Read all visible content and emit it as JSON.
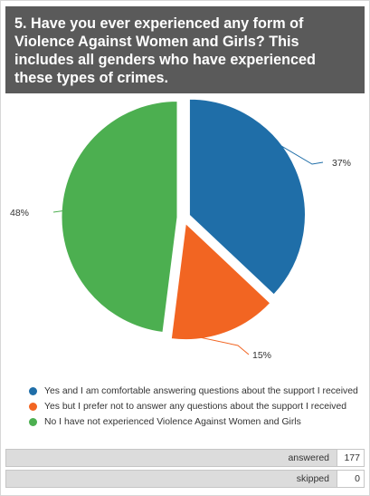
{
  "question": {
    "title": "5. Have you ever experienced any form of Violence Against Women and Girls? This includes all genders who have experienced these types of crimes."
  },
  "chart_data": {
    "type": "pie",
    "categories": [
      "Yes and I am comfortable answering questions about the support I received",
      "Yes but I prefer not to answer any questions about the support I received",
      "No I have not experienced Violence Against Women and Girls"
    ],
    "values": [
      37,
      15,
      48
    ],
    "value_labels": [
      "37%",
      "15%",
      "48%"
    ],
    "colors": [
      "#1f6ea8",
      "#f26522",
      "#4caf50"
    ],
    "exploded": true,
    "legend_placement": "bottom"
  },
  "summary": {
    "answered_label": "answered",
    "answered_value": "177",
    "skipped_label": "skipped",
    "skipped_value": "0"
  }
}
